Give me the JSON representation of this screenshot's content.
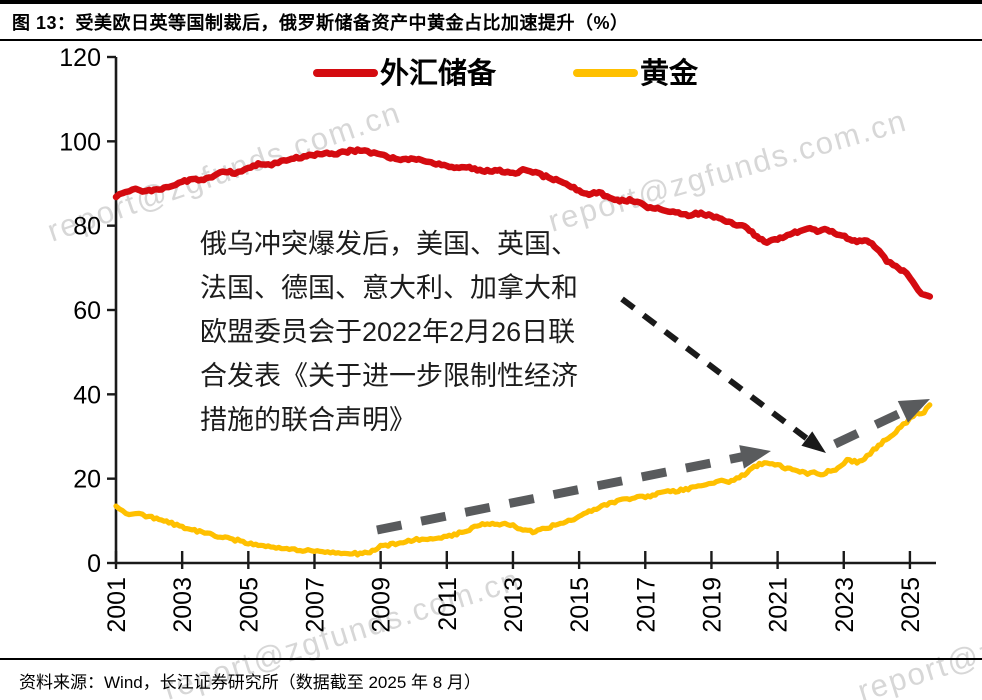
{
  "figure": {
    "title": "图 13：受美欧日英等国制裁后，俄罗斯储备资产中黄金占比加速提升（%）",
    "source": "资料来源：Wind，长江证券研究所（数据截至 2025 年 8 月）"
  },
  "watermark": {
    "text": "report@zgfunds.com.cn"
  },
  "legend": [
    {
      "label": "外汇储备",
      "color": "#d40b10"
    },
    {
      "label": "黄金",
      "color": "#ffc000"
    }
  ],
  "annotation": {
    "lines": [
      "俄乌冲突爆发后，美国、英国、",
      "法国、德国、意大利、加拿大和",
      "欧盟委员会于2022年2月26日联",
      "合发表《关于进一步限制性经济",
      "措施的联合声明》"
    ]
  },
  "chart_data": {
    "type": "line",
    "title": "受美欧日英等国制裁后，俄罗斯储备资产中黄金占比加速提升（%）",
    "xlabel": "",
    "ylabel": "",
    "ylim": [
      0,
      120
    ],
    "yticks": [
      0,
      20,
      40,
      60,
      80,
      100,
      120
    ],
    "xticks": [
      2001,
      2003,
      2005,
      2007,
      2009,
      2011,
      2013,
      2015,
      2017,
      2019,
      2021,
      2023,
      2025
    ],
    "x_range": [
      2001,
      2025.8
    ],
    "grid": false,
    "legend_position": "top",
    "series": [
      {
        "name": "外汇储备",
        "color": "#d40b10",
        "points": [
          [
            2001.0,
            86.8
          ],
          [
            2001.2,
            87.9
          ],
          [
            2001.4,
            88.4
          ],
          [
            2001.6,
            88.8
          ],
          [
            2001.8,
            87.9
          ],
          [
            2002.0,
            88.2
          ],
          [
            2002.3,
            88.7
          ],
          [
            2002.6,
            89.3
          ],
          [
            2002.8,
            89.8
          ],
          [
            2003.0,
            90.3
          ],
          [
            2003.3,
            91.1
          ],
          [
            2003.5,
            90.7
          ],
          [
            2003.8,
            91.3
          ],
          [
            2004.0,
            91.9
          ],
          [
            2004.3,
            92.8
          ],
          [
            2004.6,
            92.5
          ],
          [
            2004.8,
            93.0
          ],
          [
            2005.0,
            93.7
          ],
          [
            2005.3,
            94.6
          ],
          [
            2005.6,
            94.3
          ],
          [
            2005.8,
            94.8
          ],
          [
            2006.0,
            95.4
          ],
          [
            2006.3,
            95.9
          ],
          [
            2006.6,
            96.3
          ],
          [
            2007.0,
            96.7
          ],
          [
            2007.3,
            97.3
          ],
          [
            2007.6,
            97.1
          ],
          [
            2008.0,
            97.6
          ],
          [
            2008.3,
            97.9
          ],
          [
            2008.6,
            97.6
          ],
          [
            2008.8,
            97.1
          ],
          [
            2009.0,
            96.8
          ],
          [
            2009.3,
            96.1
          ],
          [
            2009.6,
            95.7
          ],
          [
            2010.0,
            95.9
          ],
          [
            2010.3,
            95.4
          ],
          [
            2010.6,
            94.8
          ],
          [
            2011.0,
            94.0
          ],
          [
            2011.3,
            93.6
          ],
          [
            2011.6,
            93.9
          ],
          [
            2012.0,
            93.2
          ],
          [
            2012.3,
            92.8
          ],
          [
            2012.6,
            93.0
          ],
          [
            2013.0,
            92.5
          ],
          [
            2013.3,
            93.1
          ],
          [
            2013.6,
            92.7
          ],
          [
            2014.0,
            91.6
          ],
          [
            2014.3,
            90.8
          ],
          [
            2014.6,
            90.2
          ],
          [
            2015.0,
            88.1
          ],
          [
            2015.3,
            87.5
          ],
          [
            2015.6,
            87.9
          ],
          [
            2016.0,
            86.4
          ],
          [
            2016.3,
            85.9
          ],
          [
            2016.6,
            86.1
          ],
          [
            2017.0,
            84.6
          ],
          [
            2017.3,
            84.1
          ],
          [
            2017.6,
            83.6
          ],
          [
            2018.0,
            83.1
          ],
          [
            2018.3,
            82.5
          ],
          [
            2018.6,
            82.9
          ],
          [
            2019.0,
            82.3
          ],
          [
            2019.3,
            81.5
          ],
          [
            2019.6,
            80.7
          ],
          [
            2020.0,
            79.6
          ],
          [
            2020.3,
            77.9
          ],
          [
            2020.6,
            76.1
          ],
          [
            2021.0,
            76.9
          ],
          [
            2021.3,
            77.7
          ],
          [
            2021.6,
            78.5
          ],
          [
            2021.9,
            79.4
          ],
          [
            2022.2,
            78.7
          ],
          [
            2022.5,
            79.0
          ],
          [
            2022.8,
            78.1
          ],
          [
            2023.1,
            77.1
          ],
          [
            2023.4,
            76.3
          ],
          [
            2023.7,
            76.6
          ],
          [
            2024.0,
            74.8
          ],
          [
            2024.3,
            71.5
          ],
          [
            2024.5,
            70.6
          ],
          [
            2024.8,
            69.3
          ],
          [
            2025.0,
            67.7
          ],
          [
            2025.25,
            64.8
          ],
          [
            2025.45,
            63.4
          ],
          [
            2025.6,
            63.2
          ]
        ]
      },
      {
        "name": "黄金",
        "color": "#ffc000",
        "points": [
          [
            2001.0,
            13.5
          ],
          [
            2001.2,
            12.1
          ],
          [
            2001.4,
            11.5
          ],
          [
            2001.6,
            11.9
          ],
          [
            2001.8,
            11.3
          ],
          [
            2002.0,
            11.0
          ],
          [
            2002.3,
            10.3
          ],
          [
            2002.6,
            9.6
          ],
          [
            2003.0,
            8.6
          ],
          [
            2003.3,
            7.9
          ],
          [
            2003.6,
            7.3
          ],
          [
            2004.0,
            6.6
          ],
          [
            2004.3,
            6.0
          ],
          [
            2004.6,
            5.5
          ],
          [
            2005.0,
            4.8
          ],
          [
            2005.3,
            4.3
          ],
          [
            2005.6,
            4.0
          ],
          [
            2006.0,
            3.6
          ],
          [
            2006.4,
            3.2
          ],
          [
            2006.8,
            3.0
          ],
          [
            2007.0,
            2.9
          ],
          [
            2007.4,
            2.6
          ],
          [
            2007.8,
            2.4
          ],
          [
            2008.0,
            2.3
          ],
          [
            2008.3,
            2.2
          ],
          [
            2008.6,
            2.5
          ],
          [
            2008.9,
            3.2
          ],
          [
            2009.0,
            4.0
          ],
          [
            2009.3,
            4.4
          ],
          [
            2009.6,
            4.9
          ],
          [
            2010.0,
            5.5
          ],
          [
            2010.5,
            5.9
          ],
          [
            2011.0,
            6.3
          ],
          [
            2011.3,
            6.9
          ],
          [
            2011.6,
            7.7
          ],
          [
            2012.0,
            9.0
          ],
          [
            2012.3,
            9.4
          ],
          [
            2012.6,
            9.2
          ],
          [
            2013.0,
            9.0
          ],
          [
            2013.3,
            7.8
          ],
          [
            2013.6,
            7.5
          ],
          [
            2013.9,
            8.1
          ],
          [
            2014.2,
            8.8
          ],
          [
            2014.6,
            9.8
          ],
          [
            2015.0,
            11.0
          ],
          [
            2015.3,
            12.1
          ],
          [
            2015.6,
            13.2
          ],
          [
            2016.0,
            14.3
          ],
          [
            2016.3,
            15.1
          ],
          [
            2016.6,
            15.4
          ],
          [
            2017.0,
            15.7
          ],
          [
            2017.3,
            16.2
          ],
          [
            2017.6,
            16.8
          ],
          [
            2018.0,
            17.2
          ],
          [
            2018.3,
            17.6
          ],
          [
            2018.6,
            18.2
          ],
          [
            2019.0,
            19.0
          ],
          [
            2019.3,
            19.6
          ],
          [
            2019.6,
            19.3
          ],
          [
            2020.0,
            21.0
          ],
          [
            2020.3,
            22.9
          ],
          [
            2020.6,
            23.8
          ],
          [
            2021.0,
            23.2
          ],
          [
            2021.3,
            22.4
          ],
          [
            2021.6,
            21.9
          ],
          [
            2021.9,
            21.3
          ],
          [
            2022.1,
            21.7
          ],
          [
            2022.3,
            20.9
          ],
          [
            2022.6,
            21.9
          ],
          [
            2022.9,
            22.7
          ],
          [
            2023.1,
            24.3
          ],
          [
            2023.4,
            24.0
          ],
          [
            2023.7,
            25.2
          ],
          [
            2023.9,
            26.8
          ],
          [
            2024.2,
            28.8
          ],
          [
            2024.5,
            30.6
          ],
          [
            2024.8,
            32.7
          ],
          [
            2025.0,
            34.2
          ],
          [
            2025.2,
            35.6
          ],
          [
            2025.35,
            35.1
          ],
          [
            2025.5,
            36.7
          ],
          [
            2025.6,
            37.5
          ]
        ]
      }
    ]
  }
}
